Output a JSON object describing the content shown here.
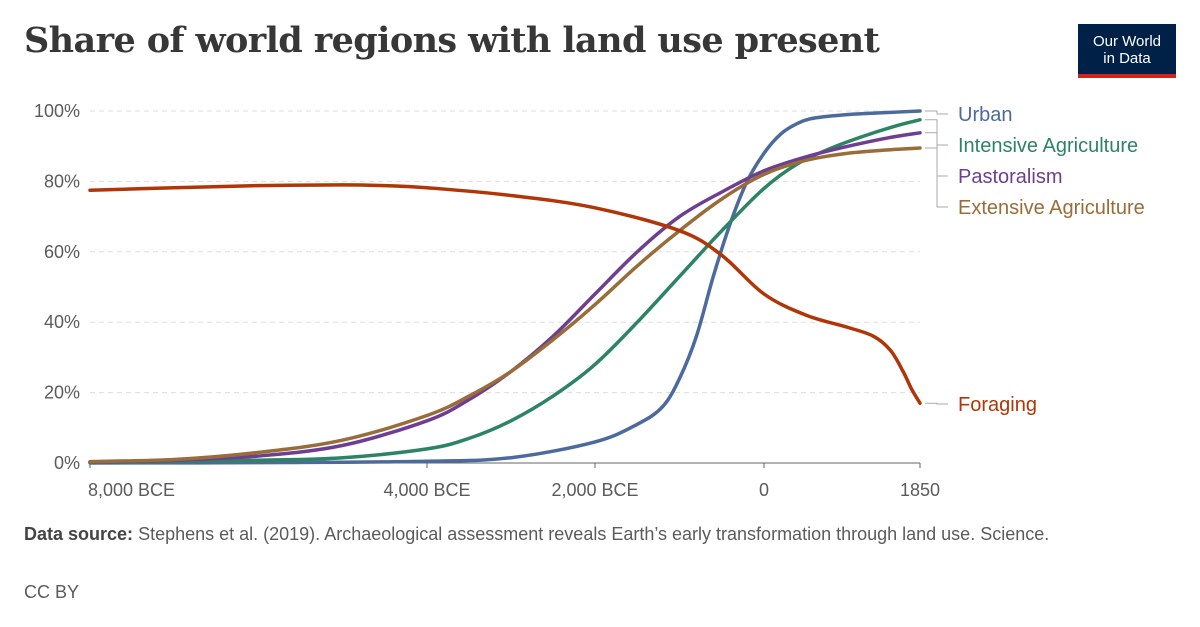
{
  "title": "Share of world regions with land use present",
  "logo": {
    "line1": "Our World",
    "line2": "in Data"
  },
  "source_label": "Data source:",
  "source_text": "Stephens et al. (2019). Archaeological assessment reveals Earth’s early transformation through land use. Science.",
  "license": "CC BY",
  "colors": {
    "grid": "#dddddd",
    "axis": "#666666",
    "tick_text": "#5b5b5b"
  },
  "chart_data": {
    "type": "line",
    "x_unit": "year (negative = BCE)",
    "x_ticks": [
      {
        "value": -8000,
        "label": "8,000 BCE"
      },
      {
        "value": -4000,
        "label": "4,000 BCE"
      },
      {
        "value": -2000,
        "label": "2,000 BCE"
      },
      {
        "value": 0,
        "label": "0"
      },
      {
        "value": 1850,
        "label": "1850"
      }
    ],
    "y_ticks": [
      {
        "value": 0,
        "label": "0%"
      },
      {
        "value": 20,
        "label": "20%"
      },
      {
        "value": 40,
        "label": "40%"
      },
      {
        "value": 60,
        "label": "60%"
      },
      {
        "value": 80,
        "label": "80%"
      },
      {
        "value": 100,
        "label": "100%"
      }
    ],
    "xlim": [
      -8000,
      1850
    ],
    "ylim": [
      0,
      100
    ],
    "grid": "horizontal dashed",
    "legend": "right, labels at line ends",
    "series": [
      {
        "name": "Urban",
        "color": "#4c6a9c",
        "points": [
          [
            -8000,
            0
          ],
          [
            -6000,
            0.1
          ],
          [
            -4000,
            0.5
          ],
          [
            -3000,
            1.5
          ],
          [
            -2000,
            6
          ],
          [
            -1500,
            11
          ],
          [
            -1200,
            16
          ],
          [
            -1000,
            24
          ],
          [
            -800,
            36
          ],
          [
            -600,
            53
          ],
          [
            -400,
            68
          ],
          [
            -200,
            80
          ],
          [
            0,
            88
          ],
          [
            200,
            93.5
          ],
          [
            400,
            96.5
          ],
          [
            600,
            98
          ],
          [
            1000,
            99
          ],
          [
            1400,
            99.5
          ],
          [
            1850,
            100
          ]
        ]
      },
      {
        "name": "Intensive Agriculture",
        "color": "#2c8465",
        "points": [
          [
            -8000,
            0.2
          ],
          [
            -6000,
            0.8
          ],
          [
            -5000,
            1.5
          ],
          [
            -4000,
            4
          ],
          [
            -3500,
            7
          ],
          [
            -3000,
            12
          ],
          [
            -2500,
            19
          ],
          [
            -2000,
            28
          ],
          [
            -1500,
            40
          ],
          [
            -1000,
            53
          ],
          [
            -500,
            66
          ],
          [
            0,
            78
          ],
          [
            400,
            85
          ],
          [
            800,
            89.5
          ],
          [
            1200,
            93
          ],
          [
            1600,
            96
          ],
          [
            1850,
            97.5
          ]
        ]
      },
      {
        "name": "Pastoralism",
        "color": "#6d3e91",
        "points": [
          [
            -8000,
            0.3
          ],
          [
            -7000,
            0.8
          ],
          [
            -6000,
            2
          ],
          [
            -5000,
            5
          ],
          [
            -4000,
            12
          ],
          [
            -3500,
            18
          ],
          [
            -3000,
            26
          ],
          [
            -2500,
            36
          ],
          [
            -2000,
            48
          ],
          [
            -1500,
            60
          ],
          [
            -1000,
            70
          ],
          [
            -500,
            77
          ],
          [
            0,
            83
          ],
          [
            500,
            87
          ],
          [
            1000,
            90
          ],
          [
            1500,
            92.5
          ],
          [
            1850,
            93.8
          ]
        ]
      },
      {
        "name": "Extensive Agriculture",
        "color": "#996d39",
        "points": [
          [
            -8000,
            0.4
          ],
          [
            -7000,
            1
          ],
          [
            -6000,
            3
          ],
          [
            -5000,
            6.5
          ],
          [
            -4000,
            13.5
          ],
          [
            -3500,
            19
          ],
          [
            -3000,
            26
          ],
          [
            -2500,
            35
          ],
          [
            -2000,
            45
          ],
          [
            -1500,
            56
          ],
          [
            -1000,
            66
          ],
          [
            -500,
            75
          ],
          [
            0,
            82
          ],
          [
            500,
            86
          ],
          [
            1000,
            88
          ],
          [
            1500,
            89
          ],
          [
            1850,
            89.5
          ]
        ]
      },
      {
        "name": "Foraging",
        "color": "#b13507",
        "points": [
          [
            -8000,
            77.5
          ],
          [
            -7000,
            78.2
          ],
          [
            -6000,
            78.8
          ],
          [
            -5000,
            79
          ],
          [
            -4500,
            78.8
          ],
          [
            -4000,
            78.2
          ],
          [
            -3000,
            76
          ],
          [
            -2000,
            72.5
          ],
          [
            -1000,
            66
          ],
          [
            -500,
            59
          ],
          [
            0,
            48
          ],
          [
            500,
            42
          ],
          [
            1000,
            38.5
          ],
          [
            1300,
            36
          ],
          [
            1500,
            32
          ],
          [
            1650,
            26
          ],
          [
            1750,
            21
          ],
          [
            1850,
            17
          ]
        ]
      }
    ]
  }
}
